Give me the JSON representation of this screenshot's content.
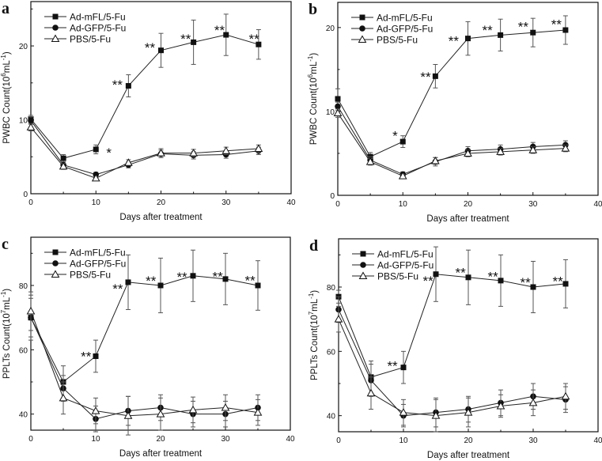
{
  "chart_data": [
    {
      "panel": "a",
      "type": "line",
      "xlabel": "Days after treatment",
      "ylabel": "PWBC Count(10^6mL^-1)",
      "ylabel_parts": [
        "PWBC Count(10",
        "6",
        "mL",
        "-1",
        ")"
      ],
      "xlim": [
        0,
        40
      ],
      "ylim": [
        0,
        26
      ],
      "xticks": [
        0,
        10,
        20,
        30,
        40
      ],
      "yticks": [
        0,
        10,
        20
      ],
      "x": [
        0,
        5,
        10,
        15,
        20,
        25,
        30,
        35
      ],
      "series": [
        {
          "name": "Ad-mFL/5-Fu",
          "marker": "square",
          "values": [
            10.1,
            4.8,
            6.0,
            14.6,
            19.4,
            20.5,
            21.5,
            20.2
          ],
          "errors": [
            0.5,
            0.5,
            0.6,
            1.5,
            2.3,
            3.0,
            2.8,
            2.0
          ]
        },
        {
          "name": "Ad-GFP/5-Fu",
          "marker": "circle",
          "values": [
            9.9,
            3.9,
            2.6,
            3.9,
            5.4,
            5.2,
            5.3,
            5.8
          ],
          "errors": [
            0.5,
            0.4,
            0.3,
            0.4,
            0.5,
            0.5,
            0.5,
            0.5
          ]
        },
        {
          "name": "PBS/5-Fu",
          "marker": "triangle",
          "values": [
            9.0,
            3.7,
            2.1,
            4.2,
            5.5,
            5.5,
            5.8,
            6.1
          ],
          "errors": [
            0.5,
            0.4,
            0.2,
            0.4,
            0.6,
            0.5,
            0.5,
            0.5
          ]
        }
      ],
      "annotations": [
        {
          "x": 12,
          "y": 6.0,
          "text": "*"
        },
        {
          "x": 13.3,
          "y": 15.2,
          "text": "**"
        },
        {
          "x": 18.3,
          "y": 20.2,
          "text": "**"
        },
        {
          "x": 23.8,
          "y": 21.4,
          "text": "**"
        },
        {
          "x": 29,
          "y": 22.6,
          "text": "**"
        },
        {
          "x": 34.3,
          "y": 21.4,
          "text": "**"
        }
      ]
    },
    {
      "panel": "b",
      "type": "line",
      "xlabel": "Days after treatment",
      "ylabel": "PWBC Count(10^6mL^-1)",
      "ylabel_parts": [
        "PWBC Count(10",
        "6",
        "mL",
        "-1",
        ")"
      ],
      "xlim": [
        0,
        40
      ],
      "ylim": [
        0,
        23
      ],
      "xticks": [
        0,
        10,
        20,
        30,
        40
      ],
      "yticks": [
        0,
        10,
        20
      ],
      "x": [
        0,
        5,
        10,
        15,
        20,
        25,
        30,
        35
      ],
      "series": [
        {
          "name": "Ad-mFL/5-Fu",
          "marker": "square",
          "values": [
            11.5,
            4.6,
            6.4,
            14.2,
            18.7,
            19.1,
            19.4,
            19.7
          ],
          "errors": [
            1.2,
            0.5,
            0.7,
            1.4,
            2.0,
            1.9,
            1.7,
            1.7
          ]
        },
        {
          "name": "Ad-GFP/5-Fu",
          "marker": "circle",
          "values": [
            10.6,
            4.2,
            2.5,
            4.0,
            5.3,
            5.5,
            5.8,
            6.0
          ],
          "errors": [
            0.5,
            0.4,
            0.3,
            0.5,
            0.5,
            0.5,
            0.5,
            0.5
          ]
        },
        {
          "name": "PBS/5-Fu",
          "marker": "triangle",
          "values": [
            9.8,
            4.0,
            2.3,
            4.1,
            5.0,
            5.2,
            5.4,
            5.6
          ],
          "errors": [
            0.5,
            0.4,
            0.2,
            0.4,
            0.4,
            0.4,
            0.4,
            0.4
          ]
        }
      ],
      "annotations": [
        {
          "x": 8.8,
          "y": 7.5,
          "text": "*"
        },
        {
          "x": 13.5,
          "y": 14.5,
          "text": "**"
        },
        {
          "x": 17.8,
          "y": 18.8,
          "text": "**"
        },
        {
          "x": 23,
          "y": 20.1,
          "text": "**"
        },
        {
          "x": 28.5,
          "y": 20.5,
          "text": "**"
        },
        {
          "x": 33.6,
          "y": 20.8,
          "text": "**"
        }
      ]
    },
    {
      "panel": "c",
      "type": "line",
      "xlabel": "Days after treatment",
      "ylabel": "PPLTs Count(10^7mL^-1)",
      "ylabel_parts": [
        "PPLTs Count(10",
        "7",
        "mL",
        "-1",
        ")"
      ],
      "xlim": [
        0,
        40
      ],
      "ylim": [
        35,
        95
      ],
      "xticks": [
        0,
        10,
        20,
        30,
        40
      ],
      "yticks": [
        40,
        60,
        80
      ],
      "x": [
        0,
        5,
        10,
        15,
        20,
        25,
        30,
        35
      ],
      "series": [
        {
          "name": "Ad-mFL/5-Fu",
          "marker": "square",
          "values": [
            70,
            50,
            58,
            81,
            80,
            83,
            82,
            80
          ],
          "errors": [
            7,
            5,
            5,
            8.5,
            8.5,
            8,
            8,
            7.7
          ]
        },
        {
          "name": "Ad-GFP/5-Fu",
          "marker": "circle",
          "values": [
            70,
            48,
            38.5,
            41,
            42,
            40,
            40,
            42
          ],
          "errors": [
            6,
            4,
            4,
            4.5,
            4,
            4,
            4,
            4
          ]
        },
        {
          "name": "PBS/5-Fu",
          "marker": "triangle",
          "values": [
            72,
            45,
            41,
            39.5,
            40,
            41.3,
            42,
            40.5
          ],
          "errors": [
            6,
            5,
            4,
            6,
            5,
            4,
            4,
            4
          ]
        }
      ],
      "annotations": [
        {
          "x": 8.5,
          "y": 59,
          "text": "**"
        },
        {
          "x": 13.4,
          "y": 80,
          "text": "**"
        },
        {
          "x": 18.5,
          "y": 82.5,
          "text": "**"
        },
        {
          "x": 23.3,
          "y": 83.7,
          "text": "**"
        },
        {
          "x": 28.8,
          "y": 83.8,
          "text": "**"
        },
        {
          "x": 33.8,
          "y": 82.6,
          "text": "**"
        }
      ]
    },
    {
      "panel": "d",
      "type": "line",
      "xlabel": "Days after treatment",
      "ylabel": "PPLTs Count(10^7mL^-1)",
      "ylabel_parts": [
        "PPLTs Count(10",
        "7",
        "mL",
        "-1",
        ")"
      ],
      "xlim": [
        0,
        40
      ],
      "ylim": [
        35,
        95
      ],
      "xticks": [
        0,
        10,
        20,
        30,
        40
      ],
      "yticks": [
        40,
        60,
        80
      ],
      "x": [
        0,
        5,
        10,
        15,
        20,
        25,
        30,
        35
      ],
      "series": [
        {
          "name": "Ad-mFL/5-Fu",
          "marker": "square",
          "values": [
            77,
            52,
            55,
            84,
            83,
            82,
            80,
            81
          ],
          "errors": [
            2,
            5,
            5,
            8.5,
            8.5,
            8,
            8,
            7.5
          ]
        },
        {
          "name": "Ad-GFP/5-Fu",
          "marker": "circle",
          "values": [
            73,
            51,
            40,
            41,
            42,
            44,
            46,
            45
          ],
          "errors": [
            4,
            5,
            3.5,
            4.5,
            4,
            4,
            4,
            4
          ]
        },
        {
          "name": "PBS/5-Fu",
          "marker": "triangle",
          "values": [
            70,
            47,
            41,
            40,
            41,
            43,
            44,
            46
          ],
          "errors": [
            4,
            5,
            4,
            5,
            4.5,
            3.5,
            4,
            4
          ]
        }
      ],
      "annotations": [
        {
          "x": 8.3,
          "y": 56.5,
          "text": "**"
        },
        {
          "x": 13.8,
          "y": 83,
          "text": "**"
        },
        {
          "x": 18.8,
          "y": 85.5,
          "text": "**"
        },
        {
          "x": 23.8,
          "y": 84.3,
          "text": "**"
        },
        {
          "x": 28.8,
          "y": 82.4,
          "text": "**"
        },
        {
          "x": 33.8,
          "y": 82.8,
          "text": "**"
        }
      ]
    }
  ]
}
